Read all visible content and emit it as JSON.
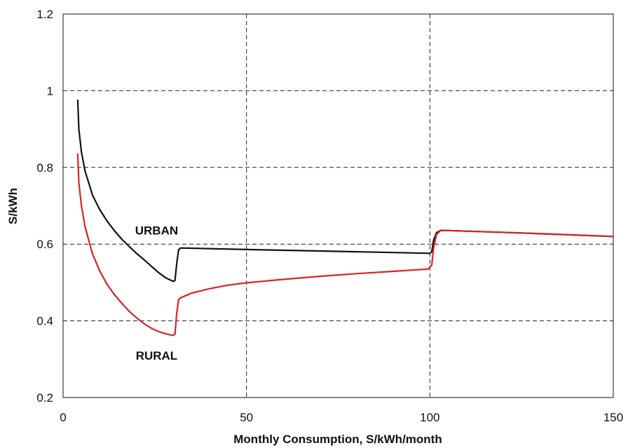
{
  "chart_data": {
    "type": "line",
    "title": "",
    "xlabel": "Monthly Consumption, S/kWh/month",
    "ylabel": "S/kWh",
    "xlim": [
      0,
      150
    ],
    "ylim": [
      0.2,
      1.2
    ],
    "xticks": [
      0,
      50,
      100,
      150
    ],
    "yticks": [
      0.2,
      0.4,
      0.6,
      0.8,
      1,
      1.2
    ],
    "xtick_labels": [
      "0",
      "50",
      "100",
      "150"
    ],
    "ytick_labels": [
      "0.2",
      "0.4",
      "0.6",
      "0.8",
      "1",
      "1.2"
    ],
    "grid": true,
    "legend": "none",
    "series": [
      {
        "name": "URBAN",
        "color": "#111111",
        "points": [
          [
            4,
            0.975
          ],
          [
            4.3,
            0.9
          ],
          [
            5,
            0.84
          ],
          [
            6,
            0.79
          ],
          [
            7,
            0.76
          ],
          [
            8,
            0.728
          ],
          [
            10,
            0.69
          ],
          [
            12,
            0.66
          ],
          [
            14,
            0.635
          ],
          [
            16,
            0.613
          ],
          [
            18,
            0.594
          ],
          [
            20,
            0.576
          ],
          [
            22,
            0.56
          ],
          [
            24,
            0.543
          ],
          [
            26,
            0.526
          ],
          [
            28,
            0.512
          ],
          [
            30,
            0.503
          ],
          [
            30.5,
            0.505
          ],
          [
            31,
            0.55
          ],
          [
            31.5,
            0.585
          ],
          [
            32,
            0.59
          ],
          [
            50,
            0.586
          ],
          [
            70,
            0.582
          ],
          [
            90,
            0.578
          ],
          [
            100,
            0.576
          ],
          [
            100.5,
            0.58
          ],
          [
            101,
            0.61
          ],
          [
            101.8,
            0.63
          ],
          [
            103,
            0.636
          ],
          [
            125,
            0.629
          ],
          [
            150,
            0.62
          ]
        ]
      },
      {
        "name": "RURAL",
        "color": "#dd2222",
        "points": [
          [
            4,
            0.835
          ],
          [
            4.3,
            0.76
          ],
          [
            5,
            0.7
          ],
          [
            6,
            0.645
          ],
          [
            7,
            0.61
          ],
          [
            8,
            0.575
          ],
          [
            10,
            0.53
          ],
          [
            12,
            0.495
          ],
          [
            14,
            0.468
          ],
          [
            16,
            0.446
          ],
          [
            18,
            0.425
          ],
          [
            20,
            0.408
          ],
          [
            22,
            0.393
          ],
          [
            24,
            0.381
          ],
          [
            26,
            0.372
          ],
          [
            28,
            0.366
          ],
          [
            30,
            0.362
          ],
          [
            30.5,
            0.365
          ],
          [
            31,
            0.42
          ],
          [
            31.5,
            0.455
          ],
          [
            32,
            0.46
          ],
          [
            35,
            0.472
          ],
          [
            40,
            0.484
          ],
          [
            45,
            0.493
          ],
          [
            50,
            0.499
          ],
          [
            60,
            0.508
          ],
          [
            70,
            0.516
          ],
          [
            80,
            0.523
          ],
          [
            90,
            0.529
          ],
          [
            99.5,
            0.535
          ],
          [
            100.5,
            0.545
          ],
          [
            101,
            0.59
          ],
          [
            101.8,
            0.625
          ],
          [
            103,
            0.636
          ],
          [
            125,
            0.629
          ],
          [
            150,
            0.62
          ]
        ]
      }
    ],
    "annotations": [
      {
        "text": "URBAN",
        "x": 25.5,
        "y": 0.636
      },
      {
        "text": "RURAL",
        "x": 25.5,
        "y": 0.31
      }
    ]
  }
}
